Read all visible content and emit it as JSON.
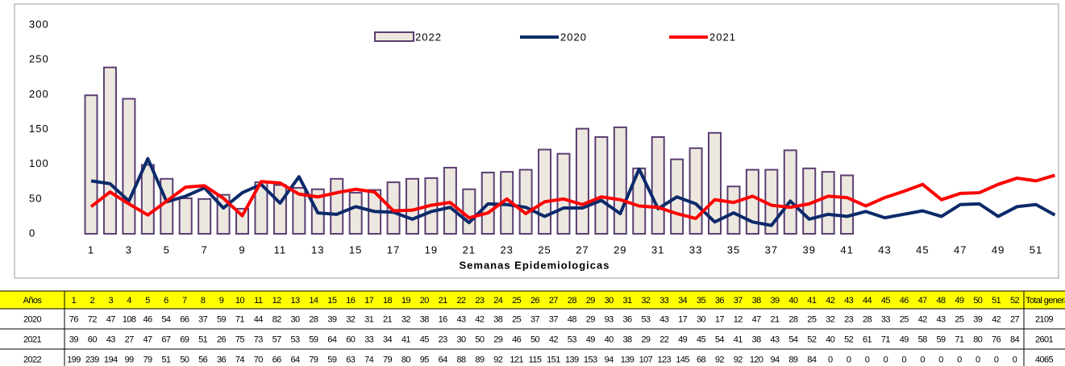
{
  "chart_data": {
    "type": "bar",
    "xlabel": "Semanas Epidemiologicas",
    "categories": [
      1,
      2,
      3,
      4,
      5,
      6,
      7,
      8,
      9,
      10,
      11,
      12,
      13,
      14,
      15,
      16,
      17,
      18,
      19,
      20,
      21,
      22,
      23,
      24,
      25,
      26,
      27,
      28,
      29,
      30,
      31,
      32,
      33,
      34,
      35,
      36,
      37,
      38,
      39,
      40,
      41,
      42,
      43,
      44,
      45,
      46,
      47,
      48,
      49,
      50,
      51,
      52
    ],
    "xticks": [
      1,
      3,
      5,
      7,
      9,
      11,
      13,
      15,
      17,
      19,
      21,
      23,
      25,
      27,
      29,
      31,
      33,
      35,
      37,
      39,
      41,
      43,
      45,
      47,
      49,
      51
    ],
    "ylim": [
      0,
      300
    ],
    "yticks": [
      0,
      50,
      100,
      150,
      200,
      250,
      300
    ],
    "grid": false,
    "series": [
      {
        "name": "2022",
        "type": "bar",
        "color": "#ede8df",
        "edge_color": "#5b3f72",
        "values": [
          199,
          239,
          194,
          99,
          79,
          51,
          50,
          56,
          36,
          74,
          70,
          66,
          64,
          79,
          59,
          63,
          74,
          79,
          80,
          95,
          64,
          88,
          89,
          92,
          121,
          115,
          151,
          139,
          153,
          94,
          139,
          107,
          123,
          145,
          68,
          92,
          92,
          120,
          94,
          89,
          84,
          0,
          0,
          0,
          0,
          0,
          0,
          0,
          0,
          0,
          0,
          0
        ]
      },
      {
        "name": "2020",
        "type": "line",
        "color": "#0c2a6a",
        "values": [
          76,
          72,
          47,
          108,
          46,
          54,
          66,
          37,
          59,
          71,
          44,
          82,
          30,
          28,
          39,
          32,
          31,
          21,
          32,
          38,
          16,
          43,
          42,
          38,
          25,
          37,
          37,
          48,
          29,
          93,
          36,
          53,
          43,
          17,
          30,
          17,
          12,
          47,
          21,
          28,
          25,
          32,
          23,
          28,
          33,
          25,
          42,
          43,
          25,
          39,
          42,
          27
        ]
      },
      {
        "name": "2021",
        "type": "line",
        "color": "#ff0000",
        "values": [
          39,
          60,
          43,
          27,
          47,
          67,
          69,
          51,
          26,
          75,
          73,
          57,
          53,
          59,
          64,
          60,
          33,
          34,
          41,
          45,
          23,
          30,
          50,
          29,
          46,
          50,
          42,
          53,
          49,
          40,
          38,
          29,
          22,
          49,
          45,
          54,
          41,
          38,
          43,
          54,
          52,
          40,
          52,
          61,
          71,
          49,
          58,
          59,
          71,
          80,
          76,
          84
        ]
      }
    ]
  },
  "table": {
    "corner": "Años",
    "total_header": "Total genera",
    "row_order": [
      1,
      2,
      0
    ],
    "totals": [
      2109,
      2601,
      4065
    ]
  }
}
